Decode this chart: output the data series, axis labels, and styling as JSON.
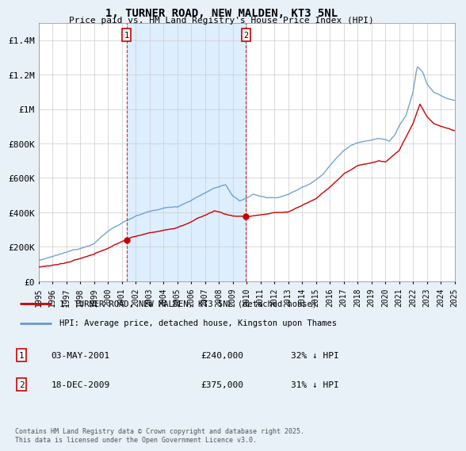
{
  "title": "1, TURNER ROAD, NEW MALDEN, KT3 5NL",
  "subtitle": "Price paid vs. HM Land Registry's House Price Index (HPI)",
  "ylabel_ticks": [
    "£0",
    "£200K",
    "£400K",
    "£600K",
    "£800K",
    "£1M",
    "£1.2M",
    "£1.4M"
  ],
  "ytick_values": [
    0,
    200000,
    400000,
    600000,
    800000,
    1000000,
    1200000,
    1400000
  ],
  "ylim": [
    0,
    1500000
  ],
  "x_start_year": 1995,
  "x_end_year": 2025,
  "sale1_year": 2001.35,
  "sale2_year": 2009.96,
  "sale1_label": "1",
  "sale2_label": "2",
  "red_color": "#cc0000",
  "blue_color": "#6699cc",
  "shade_color": "#ddeeff",
  "legend_line1": "1, TURNER ROAD, NEW MALDEN, KT3 5NL (detached house)",
  "legend_line2": "HPI: Average price, detached house, Kingston upon Thames",
  "annotation1_date": "03-MAY-2001",
  "annotation1_price": "£240,000",
  "annotation1_hpi": "32% ↓ HPI",
  "annotation2_date": "18-DEC-2009",
  "annotation2_price": "£375,000",
  "annotation2_hpi": "31% ↓ HPI",
  "copyright_text": "Contains HM Land Registry data © Crown copyright and database right 2025.\nThis data is licensed under the Open Government Licence v3.0.",
  "background_color": "#e8f0f8",
  "plot_bg_color": "#ffffff"
}
